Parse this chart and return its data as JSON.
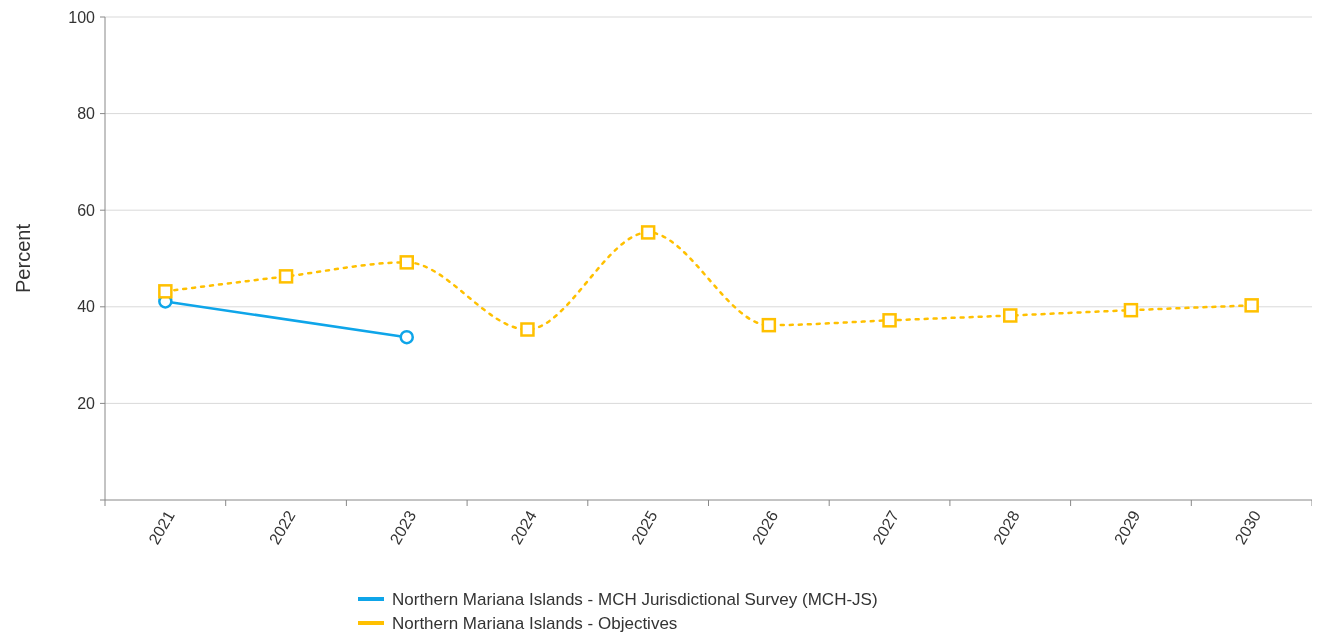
{
  "chart_data": {
    "type": "line",
    "ylabel": "Percent",
    "categories": [
      "2021",
      "2022",
      "2023",
      "2024",
      "2025",
      "2026",
      "2027",
      "2028",
      "2029",
      "2030"
    ],
    "ylim": [
      0,
      100
    ],
    "yticks": [
      {
        "value": 0,
        "label": null
      },
      20,
      40,
      60,
      80,
      100
    ],
    "grid": "y",
    "legend": "bottom",
    "series": [
      {
        "name": "Northern Mariana Islands - MCH Jurisdictional Survey (MCH-JS)",
        "color": "#0ea5e9",
        "values": [
          41.1,
          null,
          33.7,
          null,
          null,
          null,
          null,
          null,
          null,
          null
        ],
        "marker": "circle",
        "line_style": "solid"
      },
      {
        "name": "Northern Mariana Islands - Objectives",
        "color": "#ffc000",
        "values": [
          43.2,
          46.3,
          49.2,
          35.3,
          55.4,
          36.2,
          37.2,
          38.2,
          39.3,
          40.3
        ],
        "marker": "square",
        "line_style": "dotted"
      }
    ]
  }
}
